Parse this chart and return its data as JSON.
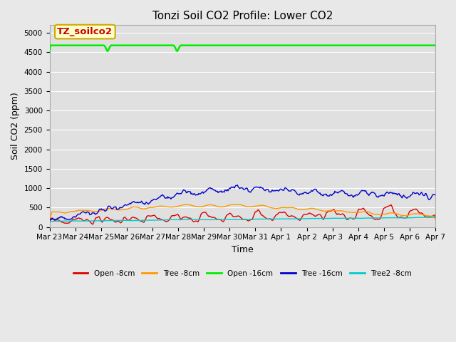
{
  "title": "Tonzi Soil CO2 Profile: Lower CO2",
  "xlabel": "Time",
  "ylabel": "Soil CO2 (ppm)",
  "ylim": [
    0,
    5200
  ],
  "yticks": [
    0,
    500,
    1000,
    1500,
    2000,
    2500,
    3000,
    3500,
    4000,
    4500,
    5000
  ],
  "fig_bg_color": "#e8e8e8",
  "axes_bg_color": "#e0e0e0",
  "grid_color": "#ffffff",
  "label_box_text": "TZ_soilco2",
  "label_box_facecolor": "#ffffcc",
  "label_box_edgecolor": "#ccaa00",
  "label_box_textcolor": "#cc0000",
  "n_points": 500,
  "x_tick_labels": [
    "Mar 23",
    "Mar 24",
    "Mar 25",
    "Mar 26",
    "Mar 27",
    "Mar 28",
    "Mar 29",
    "Mar 30",
    "Mar 31",
    "Apr 1",
    "Apr 2",
    "Apr 3",
    "Apr 4",
    "Apr 5",
    "Apr 6",
    "Apr 7"
  ],
  "series": {
    "Open -8cm": {
      "color": "#dd0000",
      "lw": 1.0
    },
    "Tree -8cm": {
      "color": "#ff9900",
      "lw": 1.0
    },
    "Open -16cm": {
      "color": "#00ee00",
      "lw": 1.8
    },
    "Tree -16cm": {
      "color": "#0000cc",
      "lw": 1.0
    },
    "Tree2 -8cm": {
      "color": "#00cccc",
      "lw": 1.0
    }
  }
}
